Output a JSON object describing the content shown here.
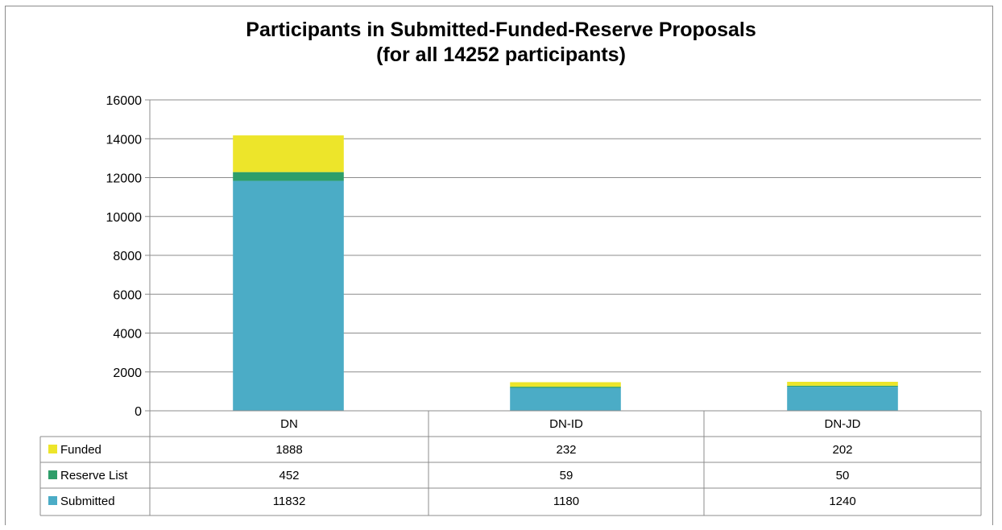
{
  "chart_data": {
    "type": "bar",
    "stacked": true,
    "title": "Participants in Submitted-Funded-Reserve Proposals",
    "subtitle": "(for all 14252 participants)",
    "categories": [
      "DN",
      "DN-ID",
      "DN-JD"
    ],
    "series": [
      {
        "name": "Submitted",
        "color": "#4bacc6",
        "values": [
          11832,
          1180,
          1240
        ]
      },
      {
        "name": "Reserve List",
        "color": "#2e9e6a",
        "values": [
          452,
          59,
          50
        ]
      },
      {
        "name": "Funded",
        "color": "#ede52a",
        "values": [
          1888,
          232,
          202
        ]
      }
    ],
    "table_rows": [
      "Funded",
      "Reserve List",
      "Submitted"
    ],
    "y_ticks": [
      0,
      2000,
      4000,
      6000,
      8000,
      10000,
      12000,
      14000,
      16000
    ],
    "ylim": [
      0,
      16000
    ],
    "grid": true,
    "legend": "data-table"
  }
}
